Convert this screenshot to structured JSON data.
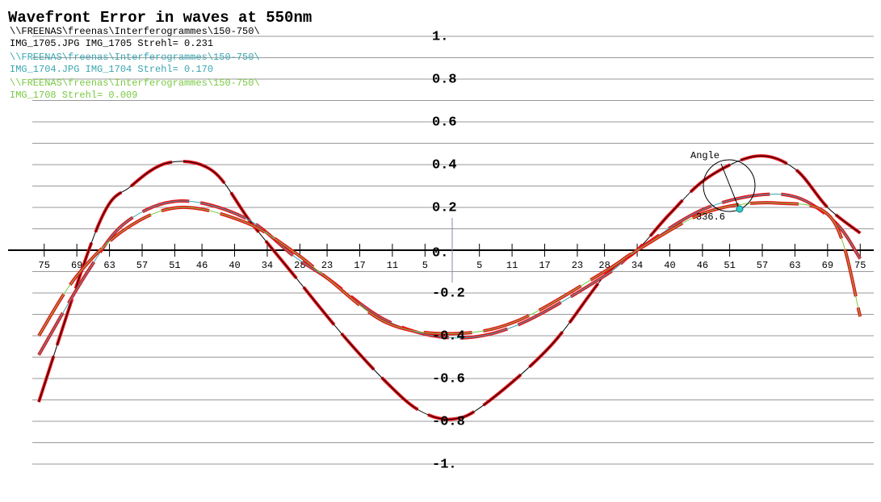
{
  "chart_data": {
    "type": "line",
    "title": "Wavefront Error in waves at 550nm",
    "legend": [
      {
        "path": "\\\\FREENAS\\freenas\\Interferogrammes\\150-750\\",
        "label": "IMG_1705.JPG IMG_1705 Strehl= 0.231",
        "color": "#000000"
      },
      {
        "path": "\\\\FREENAS\\freenas\\Interferogrammes\\150-750\\",
        "label": "IMG_1704.JPG IMG_1704 Strehl= 0.170",
        "color": "#3aa6b0"
      },
      {
        "path": "\\\\FREENAS\\freenas\\Interferogrammes\\150-750\\",
        "label": "IMG_1708 Strehl= 0.009",
        "color": "#7ac943"
      }
    ],
    "highlight_color": "#e8141b",
    "series": [
      {
        "name": "IMG_1705",
        "color": "#000000",
        "x": [
          -76,
          -65,
          -59,
          -52,
          -44,
          -37,
          -29,
          -20,
          -12,
          -6,
          0,
          6,
          18,
          28,
          34,
          40,
          47,
          56,
          63,
          69,
          75
        ],
        "values": [
          -0.71,
          0.12,
          0.3,
          0.41,
          0.37,
          0.13,
          -0.12,
          -0.4,
          -0.62,
          -0.75,
          -0.79,
          -0.72,
          -0.45,
          -0.12,
          0,
          0.17,
          0.34,
          0.44,
          0.38,
          0.2,
          0.08
        ]
      },
      {
        "name": "IMG_1704",
        "color": "#3aa6b0",
        "x": [
          -76,
          -67,
          -60,
          -50,
          -38,
          -29,
          -23,
          -12,
          0,
          12,
          28,
          34,
          47,
          61,
          70,
          75
        ],
        "values": [
          -0.49,
          -0.1,
          0.13,
          0.23,
          0.15,
          -0.03,
          -0.13,
          -0.33,
          -0.41,
          -0.35,
          -0.12,
          0,
          0.2,
          0.26,
          0.14,
          -0.04
        ]
      },
      {
        "name": "IMG_1708",
        "color": "#7ac943",
        "x": [
          -76,
          -69,
          -60,
          -50,
          -38,
          -29,
          -23,
          -12,
          0,
          12,
          28,
          34,
          47,
          60,
          70,
          75
        ],
        "values": [
          -0.4,
          -0.12,
          0.1,
          0.2,
          0.13,
          -0.01,
          -0.13,
          -0.34,
          -0.39,
          -0.33,
          -0.1,
          0,
          0.18,
          0.22,
          0.14,
          -0.31
        ]
      }
    ],
    "xlim": [
      -76,
      76
    ],
    "xticks": [
      {
        "value": -75,
        "label": "75"
      },
      {
        "value": -69,
        "label": "69"
      },
      {
        "value": -63,
        "label": "63"
      },
      {
        "value": -57,
        "label": "57"
      },
      {
        "value": -51,
        "label": "51"
      },
      {
        "value": -46,
        "label": "46"
      },
      {
        "value": -40,
        "label": "40"
      },
      {
        "value": -34,
        "label": "34"
      },
      {
        "value": -28,
        "label": "28"
      },
      {
        "value": -23,
        "label": "23"
      },
      {
        "value": -17,
        "label": "17"
      },
      {
        "value": -11,
        "label": "11"
      },
      {
        "value": -5,
        "label": "5"
      },
      5,
      11,
      17,
      23,
      28,
      34,
      40,
      46,
      51,
      57,
      63,
      69,
      75
    ],
    "ylim": [
      -1.1,
      1.1
    ],
    "yticks": [
      {
        "value": 1,
        "label": "1."
      },
      0.8,
      0.6,
      0.4,
      0.2,
      {
        "value": 0,
        "label": "0."
      },
      -0.2,
      -0.4,
      -0.6,
      -0.8,
      {
        "value": -1,
        "label": "-1."
      }
    ],
    "minor_yticks": [
      0.9,
      0.7,
      0.5,
      0.3,
      0.1,
      -0.1,
      -0.3,
      -0.5,
      -0.7,
      -0.9
    ],
    "grid": true,
    "annotations": [
      "Angle",
      "336.6"
    ]
  }
}
